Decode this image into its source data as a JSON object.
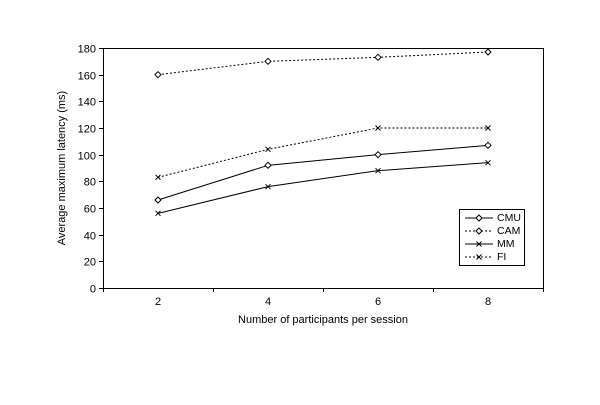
{
  "figure": {
    "background": "#ffffff",
    "foreground": "#000000"
  },
  "chart_data": {
    "type": "line",
    "title": "",
    "xlabel": "Number of participants per session",
    "ylabel": "Average maximum latency (ms)",
    "categories": [
      2,
      4,
      6,
      8
    ],
    "x_tick_labels": [
      "2",
      "4",
      "6",
      "8"
    ],
    "y_ticks": [
      0,
      20,
      40,
      60,
      80,
      100,
      120,
      140,
      160,
      180
    ],
    "ylim": [
      0,
      180
    ],
    "grid": false,
    "legend_position": "inside-bottom-right",
    "legend_entries": [
      "CMU",
      "CAM",
      "MM",
      "FI"
    ],
    "series": [
      {
        "name": "CMU",
        "values": [
          66,
          92,
          100,
          107
        ],
        "line": "solid",
        "marker": "diamond",
        "color": "#000000"
      },
      {
        "name": "CAM",
        "values": [
          160,
          170,
          173,
          177
        ],
        "line": "dotted",
        "marker": "diamond",
        "color": "#000000"
      },
      {
        "name": "MM",
        "values": [
          56,
          76,
          88,
          94
        ],
        "line": "solid",
        "marker": "x",
        "color": "#000000"
      },
      {
        "name": "FI",
        "values": [
          83,
          104,
          120,
          120
        ],
        "line": "dotted",
        "marker": "x",
        "color": "#000000"
      }
    ]
  }
}
